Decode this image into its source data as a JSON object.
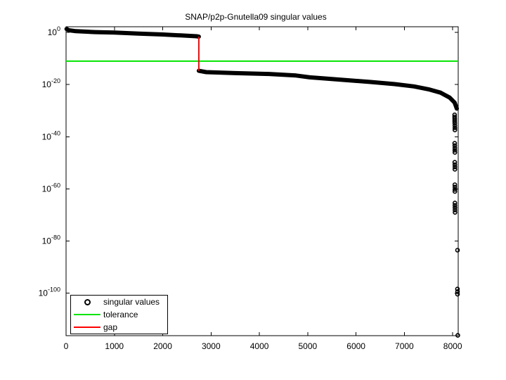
{
  "figure": {
    "title": "SNAP/p2p-Gnutella09 singular values",
    "background": "#ffffff"
  },
  "legend": {
    "items": [
      {
        "label": "singular values",
        "sample": "circle-marker",
        "color": "#000000"
      },
      {
        "label": "tolerance",
        "sample": "line",
        "color": "#00e400"
      },
      {
        "label": "gap",
        "sample": "line",
        "color": "#ff0000"
      }
    ]
  },
  "chart_data": {
    "type": "scatter",
    "title": "SNAP/p2p-Gnutella09 singular values",
    "xlabel": "",
    "ylabel": "",
    "grid": false,
    "legend_position": "bottom-left",
    "xlim": [
      0,
      8114
    ],
    "ylim_exp": [
      -116.3,
      2.2
    ],
    "x_tick_values": [
      0,
      1000,
      2000,
      3000,
      4000,
      5000,
      6000,
      7000,
      8000
    ],
    "x_tick_labels": [
      "0",
      "1000",
      "2000",
      "3000",
      "4000",
      "5000",
      "6000",
      "7000",
      "8000"
    ],
    "y_tick_exponents": [
      0,
      -20,
      -40,
      -60,
      -80,
      -100
    ],
    "y_tick_base": "10",
    "y_tick_exponent_labels": [
      "0",
      "-20",
      "-40",
      "-60",
      "-80",
      "-100"
    ],
    "tolerance_exp": -11,
    "gap_index": 2747,
    "gap_span_exp": [
      -1.6,
      -14.7
    ],
    "upper_curve_exp": [
      [
        10,
        1.34
      ],
      [
        60,
        0.85
      ],
      [
        200,
        0.5
      ],
      [
        600,
        0.15
      ],
      [
        1000,
        -0.05
      ],
      [
        1500,
        -0.42
      ],
      [
        2000,
        -0.78
      ],
      [
        2400,
        -1.15
      ],
      [
        2700,
        -1.45
      ],
      [
        2747,
        -1.6
      ]
    ],
    "lower_curve_exp": [
      [
        2747,
        -14.7
      ],
      [
        2900,
        -15.2
      ],
      [
        3500,
        -15.6
      ],
      [
        4200,
        -15.9
      ],
      [
        4760,
        -16.5
      ],
      [
        5040,
        -17.2
      ],
      [
        5330,
        -17.6
      ],
      [
        5800,
        -18.3
      ],
      [
        6300,
        -19.0
      ],
      [
        6800,
        -19.8
      ],
      [
        7200,
        -20.7
      ],
      [
        7500,
        -21.8
      ],
      [
        7750,
        -23.1
      ],
      [
        7940,
        -25.0
      ],
      [
        8040,
        -26.9
      ],
      [
        8085,
        -29.2
      ]
    ],
    "tail_points_exp": [
      [
        8040,
        -31.6
      ],
      [
        8040,
        -32.4
      ],
      [
        8041,
        -33.2
      ],
      [
        8042,
        -34.0
      ],
      [
        8043,
        -34.8
      ],
      [
        8044,
        -35.7
      ],
      [
        8045,
        -36.6
      ],
      [
        8045,
        -37.4
      ],
      [
        8042,
        -42.5
      ],
      [
        8043,
        -43.4
      ],
      [
        8044,
        -44.3
      ],
      [
        8044,
        -45.2
      ],
      [
        8045,
        -46.0
      ],
      [
        8043,
        -49.8
      ],
      [
        8044,
        -50.7
      ],
      [
        8045,
        -51.6
      ],
      [
        8045,
        -52.5
      ],
      [
        8044,
        -58.4
      ],
      [
        8045,
        -59.3
      ],
      [
        8046,
        -60.2
      ],
      [
        8046,
        -61.0
      ],
      [
        8045,
        -65.4
      ],
      [
        8046,
        -66.3
      ],
      [
        8047,
        -67.2
      ],
      [
        8047,
        -68.1
      ],
      [
        8048,
        -69.0
      ],
      [
        8100,
        -83.5
      ],
      [
        8098,
        -98.4
      ],
      [
        8099,
        -99.4
      ],
      [
        8100,
        -100.4
      ],
      [
        8105,
        -116.2
      ]
    ],
    "colors": {
      "singular_values": "#000000",
      "tolerance": "#00e400",
      "gap": "#ff0000",
      "axes": "#000000"
    }
  }
}
